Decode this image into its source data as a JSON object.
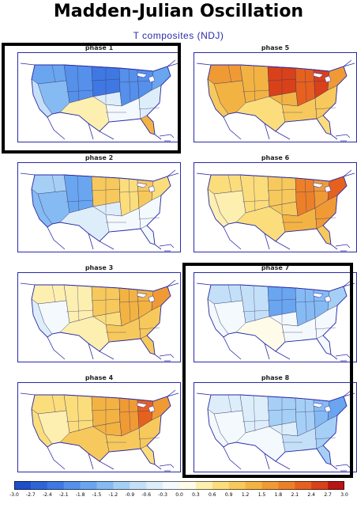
{
  "title": "Madden-Julian Oscillation",
  "subtitle": "T composites (NDJ)",
  "panels": [
    {
      "label": "phase 1",
      "highlighted": true,
      "regions": {
        "west": -1.3,
        "northwest": -1.8,
        "rockies": -2.0,
        "plains_north": -2.4,
        "plains_south": -0.6,
        "midwest": -2.1,
        "south": -0.3,
        "great_lakes": -2.0,
        "southeast": -0.6,
        "northeast": -1.8,
        "florida": 1.2,
        "texas": 0.3,
        "california": -0.9
      }
    },
    {
      "label": "phase 5",
      "highlighted": false,
      "regions": {
        "west": 1.2,
        "northwest": 1.5,
        "rockies": 1.2,
        "plains_north": 2.4,
        "plains_south": 1.2,
        "midwest": 2.1,
        "south": 0.9,
        "great_lakes": 2.4,
        "southeast": 0.9,
        "northeast": 1.5,
        "florida": 0.6,
        "texas": 0.6,
        "california": 0.9
      }
    },
    {
      "label": "phase 2",
      "highlighted": false,
      "regions": {
        "west": -1.5,
        "northwest": -1.2,
        "rockies": -1.8,
        "plains_north": 0.9,
        "plains_south": -0.6,
        "midwest": 0.6,
        "south": -0.3,
        "great_lakes": 0.9,
        "southeast": -0.3,
        "northeast": 0.6,
        "florida": -0.3,
        "texas": -0.6,
        "california": -1.5
      }
    },
    {
      "label": "phase 6",
      "highlighted": false,
      "regions": {
        "west": 0.3,
        "northwest": 0.6,
        "rockies": 0.6,
        "plains_north": 0.9,
        "plains_south": 0.9,
        "midwest": 1.8,
        "south": 1.2,
        "great_lakes": 1.5,
        "southeast": 1.5,
        "northeast": 2.1,
        "florida": 0.9,
        "texas": 0.6,
        "california": 0.3
      }
    },
    {
      "label": "phase 3",
      "highlighted": false,
      "regions": {
        "west": -0.3,
        "northwest": 0.3,
        "rockies": 0.3,
        "plains_north": 0.9,
        "plains_south": 0.6,
        "midwest": 1.2,
        "south": 0.9,
        "great_lakes": 1.2,
        "southeast": 0.9,
        "northeast": 1.5,
        "florida": 0.9,
        "texas": 0.3,
        "california": -0.6
      }
    },
    {
      "label": "phase 7",
      "highlighted": true,
      "regions": {
        "west": -0.3,
        "northwest": -0.9,
        "rockies": -0.9,
        "plains_north": -1.8,
        "plains_south": -0.3,
        "midwest": -1.5,
        "south": -0.3,
        "great_lakes": -1.5,
        "southeast": -0.3,
        "northeast": -1.2,
        "florida": -0.3,
        "texas": 0.0,
        "california": -0.3
      }
    },
    {
      "label": "phase 4",
      "highlighted": false,
      "regions": {
        "west": 0.3,
        "northwest": 0.6,
        "rockies": 0.6,
        "plains_north": 1.2,
        "plains_south": 1.2,
        "midwest": 1.5,
        "south": 0.9,
        "great_lakes": 2.1,
        "southeast": 0.9,
        "northeast": 1.5,
        "florida": 0.6,
        "texas": 0.9,
        "california": 0.6
      }
    },
    {
      "label": "phase 8",
      "highlighted": true,
      "regions": {
        "west": -0.3,
        "northwest": -0.6,
        "rockies": -0.6,
        "plains_north": -1.2,
        "plains_south": -0.6,
        "midwest": -1.2,
        "south": -0.9,
        "great_lakes": -1.5,
        "southeast": -1.2,
        "northeast": -1.8,
        "florida": -1.2,
        "texas": -0.3,
        "california": -0.3
      }
    }
  ],
  "colorbar": {
    "labels": [
      "-3.0",
      "-2.7",
      "-2.4",
      "-2.1",
      "-1.8",
      "-1.5",
      "-1.2",
      "-0.9",
      "-0.6",
      "-0.3",
      "0.0",
      "0.3",
      "0.6",
      "0.9",
      "1.2",
      "1.5",
      "1.8",
      "2.1",
      "2.4",
      "2.7",
      "3.0"
    ],
    "colors": [
      "#1f4fc8",
      "#2e64d8",
      "#3f78e2",
      "#5590ea",
      "#6aa5ef",
      "#86baf3",
      "#a6cff6",
      "#c4e0f8",
      "#ddeefa",
      "#f3f9fd",
      "#fefbe8",
      "#fdefb0",
      "#fbdd7c",
      "#f7c95c",
      "#f3b343",
      "#f09a35",
      "#ec8028",
      "#e6611e",
      "#d84119",
      "#b81512"
    ]
  }
}
